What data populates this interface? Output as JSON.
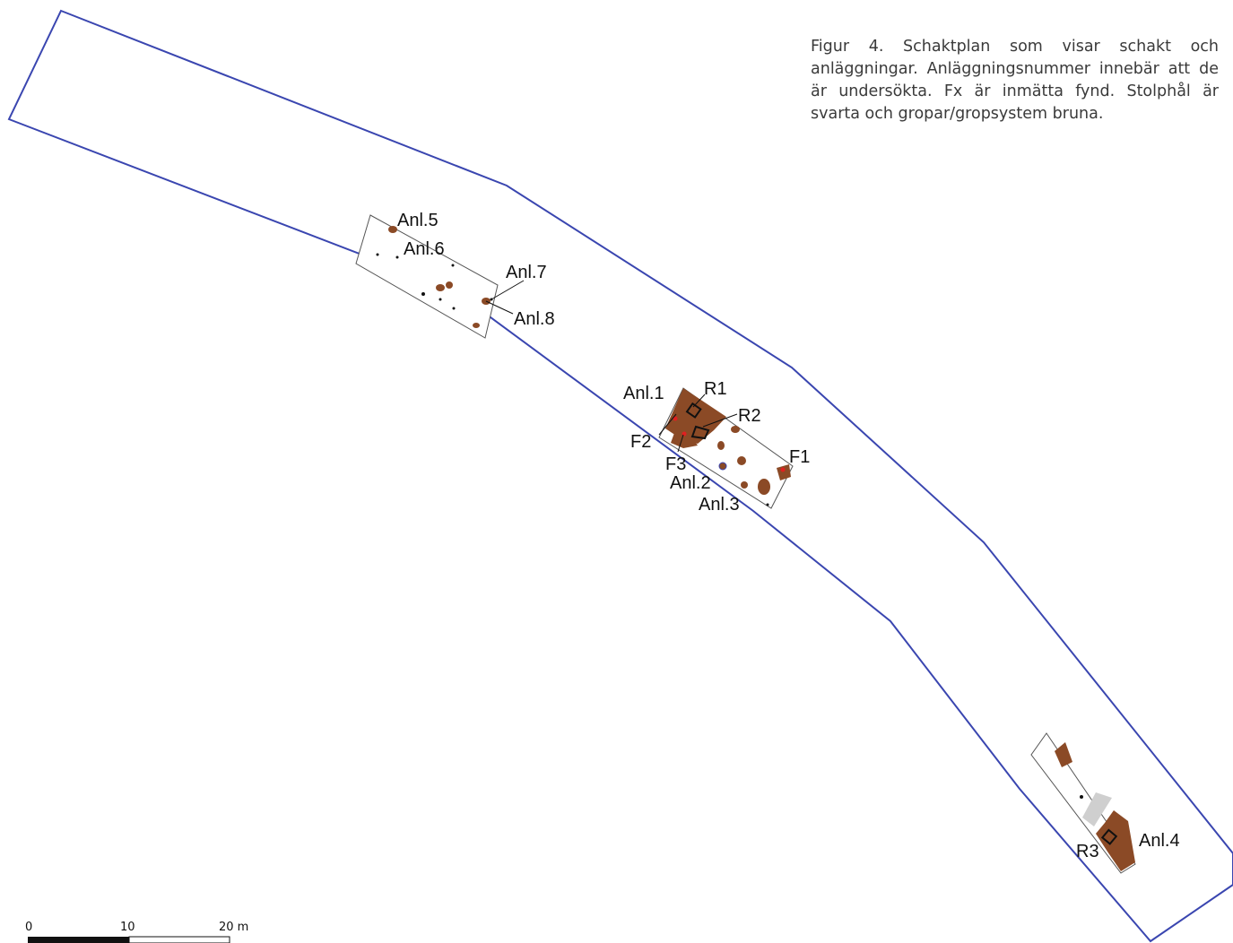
{
  "caption": "Figur 4. Schaktplan som visar schakt och anläggningar. Anläggningsnummer innebär att de är undersökta. Fx är inmätta fynd. Stolphål är svarta och gropar/gropsystem bruna.",
  "labels": {
    "anl1": "Anl.1",
    "anl2": "Anl.2",
    "anl3": "Anl.3",
    "anl4": "Anl.4",
    "anl5": "Anl.5",
    "anl6": "Anl.6",
    "anl7": "Anl.7",
    "anl8": "Anl.8",
    "r1": "R1",
    "r2": "R2",
    "r3": "R3",
    "f1": "F1",
    "f2": "F2",
    "f3": "F3"
  },
  "scale_bar": {
    "tick_0": "0",
    "tick_10": "10",
    "tick_20": "20 m"
  },
  "colors": {
    "boundary": "#3a46b0",
    "pit": "#8b4a26",
    "posthole": "#111111",
    "find_marker": "#e02020",
    "trench_outline": "#555555",
    "gray_strip": "#cfcfcf"
  }
}
